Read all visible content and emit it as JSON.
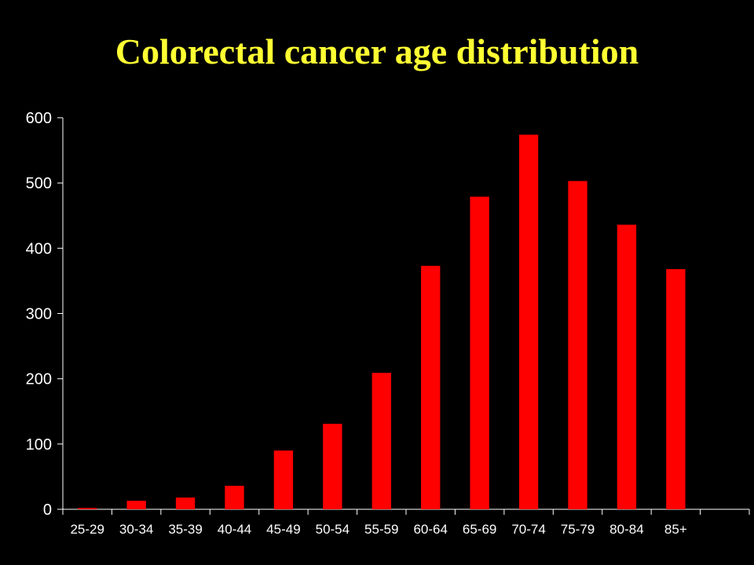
{
  "slide": {
    "title": "Colorectal cancer age distribution"
  },
  "colors": {
    "background": "#000000",
    "title": "#ffff33",
    "bar": "#ff0000",
    "axis": "#ffffff",
    "text": "#ffffff"
  },
  "chart_data": {
    "type": "bar",
    "title": "Colorectal cancer age distribution",
    "xlabel": "",
    "ylabel": "",
    "ylim": [
      0,
      600
    ],
    "yticks": [
      0,
      100,
      200,
      300,
      400,
      500,
      600
    ],
    "grid": false,
    "legend": "none",
    "categories": [
      "25-29",
      "30-34",
      "35-39",
      "40-44",
      "45-49",
      "50-54",
      "55-59",
      "60-64",
      "65-69",
      "70-74",
      "75-79",
      "80-84",
      "85+",
      ""
    ],
    "values": [
      2,
      13,
      18,
      36,
      90,
      131,
      209,
      373,
      479,
      574,
      503,
      436,
      368,
      null
    ]
  }
}
